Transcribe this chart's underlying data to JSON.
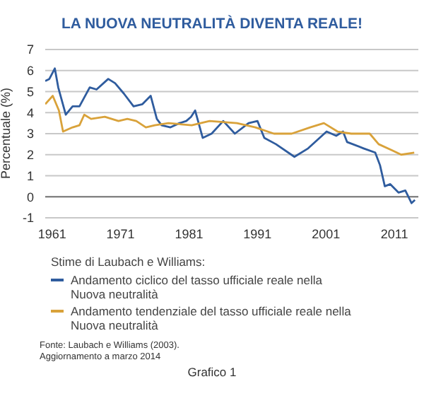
{
  "chart_data": {
    "type": "line",
    "title": "LA NUOVA NEUTRALITÀ DIVENTA REALE!",
    "ylabel": "Percentuale (%)",
    "legend_title": "Stime di Laubach e Williams:",
    "annotations": [
      "Fonte: Laubach e Williams (2003).",
      "Aggiornamento a marzo 2014",
      "Grafico 1"
    ],
    "xlim": [
      1960,
      2014.5
    ],
    "xticks": [
      1961,
      1971,
      1981,
      1991,
      2001,
      2011
    ],
    "ylim": [
      -1,
      7
    ],
    "yticks": [
      -1,
      0,
      1,
      2,
      3,
      4,
      5,
      6,
      7
    ],
    "grid": "y",
    "legend": "bottom",
    "marker": "none",
    "line_style": "solid",
    "series": [
      {
        "name": "Andamento ciclico del tasso ufficiale reale nella Nuova neutralità",
        "color": "#2f5c9e",
        "x": [
          1960,
          1960.6,
          1961.4,
          1961.9,
          1963,
          1964,
          1965,
          1966.5,
          1967.5,
          1969.2,
          1970.2,
          1971.5,
          1972.9,
          1974.2,
          1975.4,
          1976.3,
          1977,
          1978.3,
          1979.6,
          1980.6,
          1981.3,
          1981.9,
          1983,
          1984.3,
          1986,
          1987.7,
          1989.7,
          1991,
          1992,
          1993.7,
          1996.4,
          1998.4,
          2001.1,
          2002.5,
          2003.5,
          2004.1,
          2006.5,
          2008.2,
          2008.9,
          2009.6,
          2010.4,
          2011.6,
          2012.6,
          2013.5,
          2014
        ],
        "values": [
          5.5,
          5.6,
          6.1,
          5.2,
          3.9,
          4.3,
          4.3,
          5.2,
          5.1,
          5.6,
          5.4,
          4.9,
          4.3,
          4.4,
          4.8,
          3.7,
          3.4,
          3.3,
          3.5,
          3.6,
          3.8,
          4.1,
          2.8,
          3.0,
          3.6,
          3.0,
          3.5,
          3.6,
          2.8,
          2.5,
          1.9,
          2.3,
          3.1,
          2.9,
          3.1,
          2.6,
          2.3,
          2.1,
          1.5,
          0.5,
          0.6,
          0.2,
          0.3,
          -0.3,
          -0.15
        ]
      },
      {
        "name": "Andamento tendenziale del tasso ufficiale reale nella Nuova neutralità",
        "color": "#d9a23a",
        "x": [
          1960,
          1961.1,
          1962,
          1962.6,
          1964,
          1965,
          1965.7,
          1966.7,
          1968.7,
          1970.7,
          1972,
          1973.3,
          1974.7,
          1976,
          1978,
          1981.4,
          1984,
          1988,
          1990.7,
          1993.4,
          1996,
          1998.7,
          2000.7,
          2002.7,
          2004.7,
          2007.4,
          2008.7,
          2010.7,
          2012,
          2013.9
        ],
        "values": [
          4.4,
          4.8,
          4.1,
          3.1,
          3.3,
          3.4,
          3.9,
          3.7,
          3.8,
          3.6,
          3.7,
          3.6,
          3.3,
          3.4,
          3.5,
          3.4,
          3.6,
          3.5,
          3.3,
          3.0,
          3.0,
          3.3,
          3.5,
          3.1,
          3.0,
          3.0,
          2.5,
          2.2,
          2.0,
          2.1
        ]
      }
    ]
  }
}
